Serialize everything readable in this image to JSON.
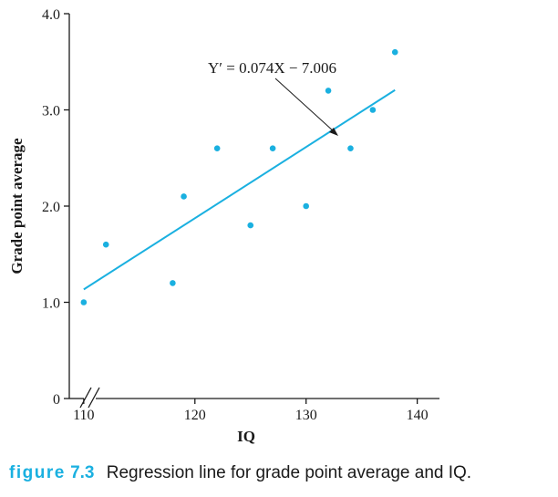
{
  "chart_data": {
    "type": "scatter",
    "xlabel": "IQ",
    "ylabel": "Grade point average",
    "xlim": [
      108.7,
      142
    ],
    "ylim": [
      0,
      4.0
    ],
    "xticks": [
      "110",
      "120",
      "130",
      "140"
    ],
    "yticks": [
      "0",
      "1.0",
      "2.0",
      "3.0",
      "4.0"
    ],
    "axis_break_x": true,
    "grid": false,
    "points": [
      {
        "x": 110,
        "y": 1.0
      },
      {
        "x": 112,
        "y": 1.6
      },
      {
        "x": 118,
        "y": 1.2
      },
      {
        "x": 119,
        "y": 2.1
      },
      {
        "x": 122,
        "y": 2.6
      },
      {
        "x": 125,
        "y": 1.8
      },
      {
        "x": 127,
        "y": 2.6
      },
      {
        "x": 130,
        "y": 2.0
      },
      {
        "x": 132,
        "y": 3.2
      },
      {
        "x": 134,
        "y": 2.6
      },
      {
        "x": 136,
        "y": 3.0
      },
      {
        "x": 138,
        "y": 3.6
      }
    ],
    "regression": {
      "equation": "Y′ = 0.074X − 7.006",
      "slope": 0.074,
      "intercept": -7.006,
      "x_range": [
        110,
        138
      ]
    },
    "colors": {
      "points": "#1ab0e0",
      "line": "#1ab0e0",
      "axes": "#1a1a1a"
    }
  },
  "caption": {
    "label": "figure",
    "number": "7.3",
    "text": "Regression line for grade point average and IQ."
  }
}
